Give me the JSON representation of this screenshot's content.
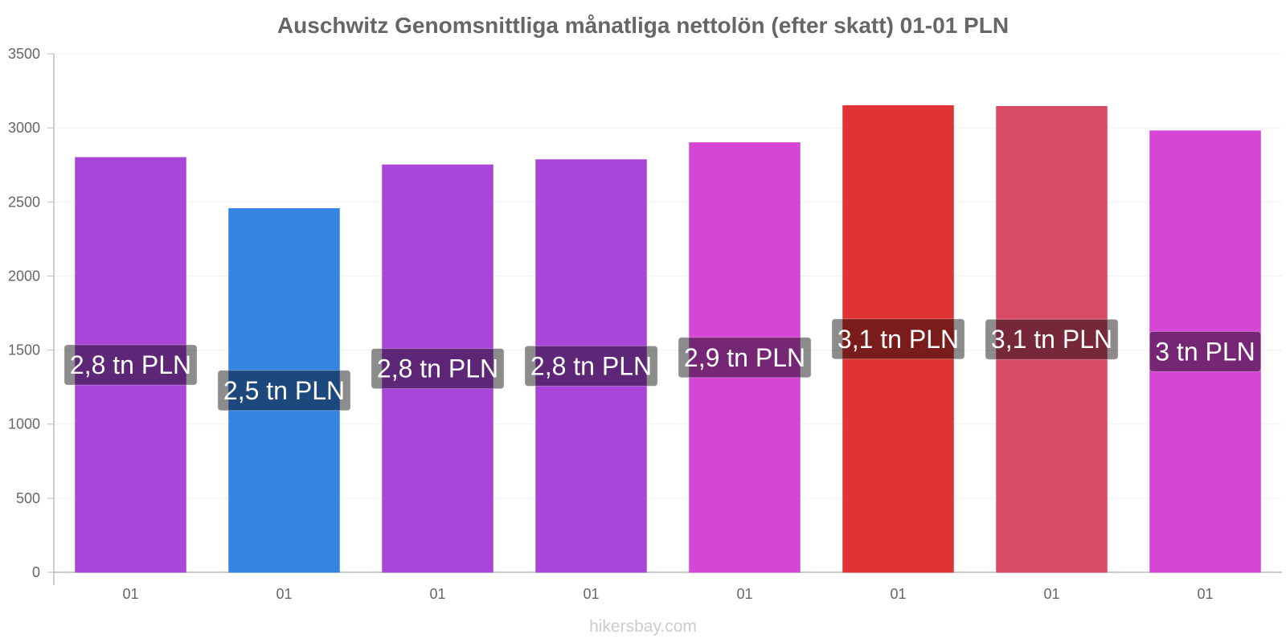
{
  "chart_data": {
    "type": "bar",
    "title": "Auschwitz Genomsnittliga månatliga nettolön (efter skatt) 01-01 PLN",
    "xlabel": "",
    "ylabel": "",
    "ylim": [
      0,
      3500
    ],
    "yticks": [
      0,
      500,
      1000,
      1500,
      2000,
      2500,
      3000,
      3500
    ],
    "grid": true,
    "categories": [
      "01",
      "01",
      "01",
      "01",
      "01",
      "01",
      "01",
      "01"
    ],
    "values": [
      2800,
      2455,
      2750,
      2785,
      2900,
      3150,
      3145,
      2980
    ],
    "data_labels": [
      "2,8 tn PLN",
      "2,5 tn PLN",
      "2,8 tn PLN",
      "2,8 tn PLN",
      "2,9 tn PLN",
      "3,1 tn PLN",
      "3,1 tn PLN",
      "3 tn PLN"
    ],
    "colors": [
      "#a946d9",
      "#3584e4",
      "#a946d9",
      "#a946d9",
      "#d646d6",
      "#e03434",
      "#d94a66",
      "#d646d6"
    ]
  },
  "footer": "hikersbay.com"
}
